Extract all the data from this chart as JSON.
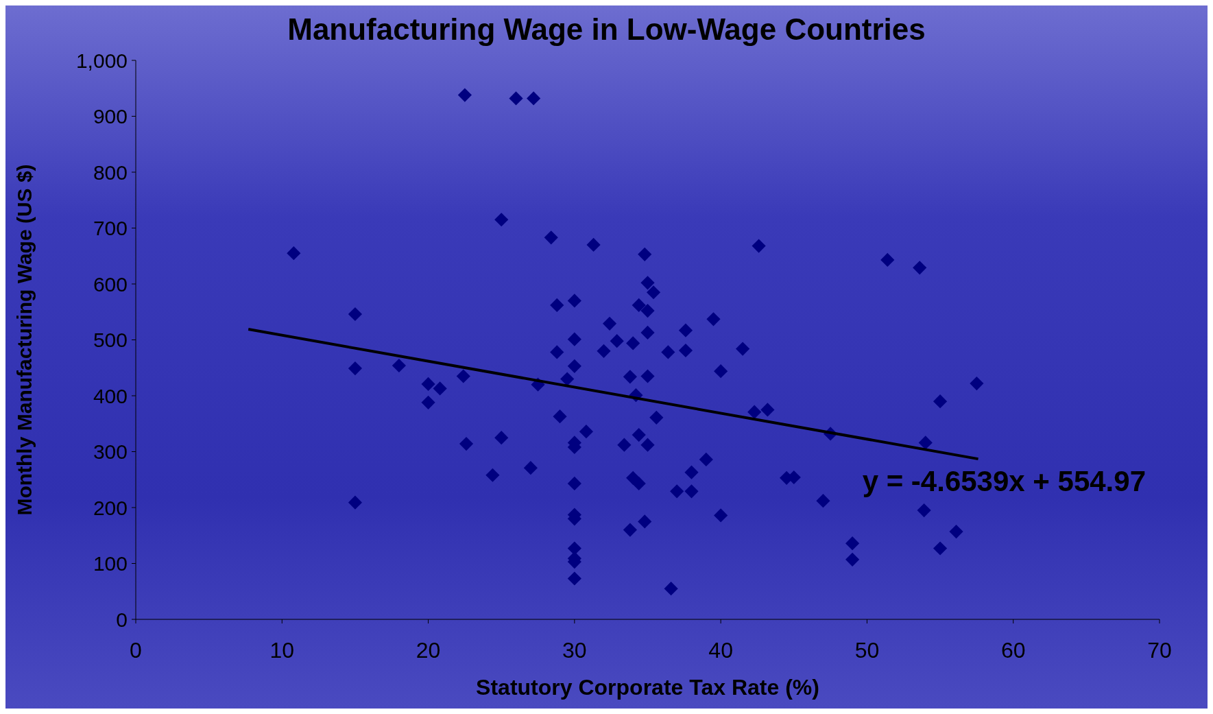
{
  "chart_data": {
    "type": "scatter",
    "title": "Manufacturing Wage in Low-Wage Countries",
    "xlabel": "Statutory Corporate Tax Rate (%)",
    "ylabel": "Monthly Manufacturing Wage (US $)",
    "xlim": [
      0,
      70
    ],
    "ylim": [
      0,
      1000
    ],
    "xticks": [
      0,
      10,
      20,
      30,
      40,
      50,
      60,
      70
    ],
    "yticks": [
      0,
      100,
      200,
      300,
      400,
      500,
      600,
      700,
      800,
      900,
      {
        "value": 1000,
        "label": "1,000"
      }
    ],
    "grid": false,
    "marker": "diamond",
    "annotations": [
      "y = -4.6539x + 554.97"
    ],
    "series": [
      {
        "color": "#000080",
        "x": [
          10.8,
          15,
          15,
          15,
          18,
          20,
          20,
          20.8,
          22.4,
          22.5,
          22.6,
          24.4,
          25,
          25,
          26,
          27.2,
          27,
          27.5,
          28.4,
          28.8,
          28.8,
          29,
          29.5,
          30,
          30,
          30,
          30,
          30,
          30,
          30,
          30,
          30,
          30,
          30,
          30,
          30.8,
          31.3,
          32,
          32.4,
          32.9,
          33.4,
          33.8,
          33.8,
          34,
          34,
          34.2,
          34.4,
          34.4,
          34.4,
          34.8,
          34.8,
          35,
          35,
          35,
          35,
          35,
          35.4,
          35.6,
          36.4,
          36.6,
          37,
          37.6,
          37.6,
          38,
          38,
          39,
          39.5,
          40,
          40,
          41.5,
          42.3,
          42.6,
          43.2,
          44.5,
          45,
          47,
          47.5,
          49,
          49,
          51.4,
          53.6,
          53.9,
          54,
          55,
          55,
          56.1,
          57.5
        ],
        "values": [
          655,
          546,
          449,
          209,
          454,
          421,
          388,
          413,
          435,
          938,
          314,
          258,
          715,
          325,
          932,
          932,
          271,
          420,
          683,
          562,
          478,
          363,
          430,
          570,
          501,
          453,
          316,
          308,
          243,
          187,
          180,
          127,
          109,
          103,
          73,
          336,
          670,
          480,
          529,
          498,
          312,
          434,
          160,
          494,
          253,
          401,
          562,
          330,
          243,
          653,
          175,
          602,
          552,
          513,
          435,
          312,
          585,
          361,
          478,
          55,
          229,
          517,
          481,
          263,
          229,
          286,
          537,
          444,
          186,
          484,
          371,
          668,
          375,
          253,
          254,
          212,
          332,
          136,
          107,
          643,
          629,
          195,
          316,
          390,
          127,
          157,
          422
        ]
      },
      {
        "type": "line",
        "color": "#000000",
        "line_style": "solid",
        "marker": "none",
        "x": [
          7.7,
          57.6
        ],
        "values": [
          519,
          287
        ]
      }
    ]
  }
}
